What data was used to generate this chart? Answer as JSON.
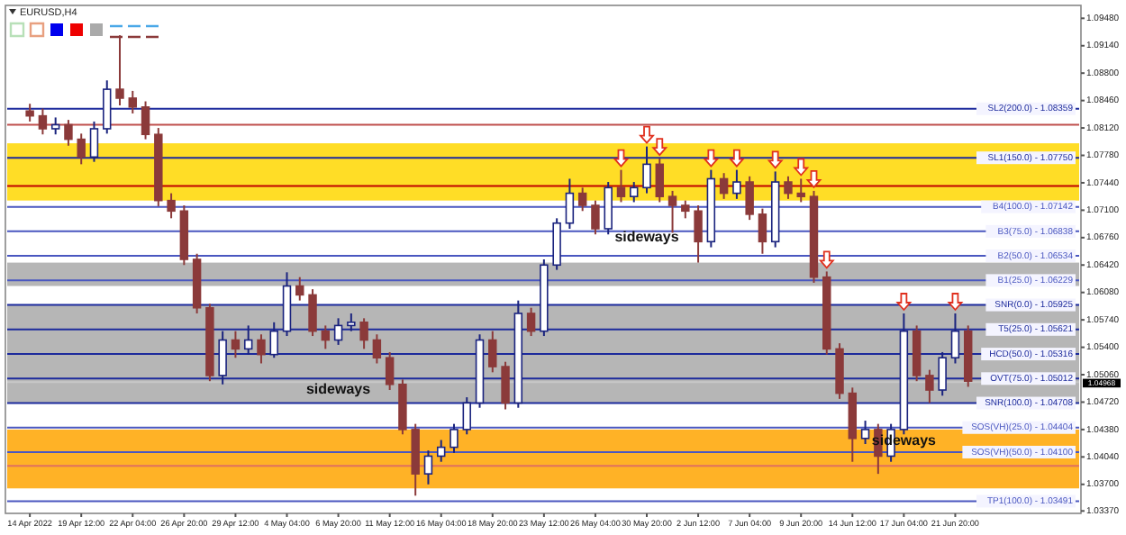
{
  "chart_data": {
    "type": "candlestick",
    "title": "EURUSD,H4",
    "categories": [
      "14 Apr 2022",
      null,
      null,
      null,
      "19 Apr 12:00",
      null,
      null,
      null,
      "22 Apr 04:00",
      null,
      null,
      null,
      "26 Apr 20:00",
      null,
      null,
      null,
      "29 Apr 12:00",
      null,
      null,
      null,
      "4 May 04:00",
      null,
      null,
      null,
      "6 May 20:00",
      null,
      null,
      null,
      "11 May 12:00",
      null,
      null,
      null,
      "16 May 04:00",
      null,
      null,
      null,
      "18 May 20:00",
      null,
      null,
      null,
      "23 May 12:00",
      null,
      null,
      null,
      "26 May 04:00",
      null,
      null,
      null,
      "30 May 20:00",
      null,
      null,
      null,
      "2 Jun 12:00",
      null,
      null,
      null,
      "7 Jun 04:00",
      null,
      null,
      null,
      "9 Jun 20:00",
      null,
      null,
      null,
      "14 Jun 12:00",
      null,
      null,
      null,
      "17 Jun 04:00",
      null,
      null,
      null,
      "21 Jun 20:00",
      null,
      null,
      null,
      null,
      null,
      null,
      null,
      null,
      null
    ],
    "ohlc": [
      [
        1.0833,
        1.0842,
        1.082,
        1.0827
      ],
      [
        1.0827,
        1.0836,
        1.0804,
        1.0811
      ],
      [
        1.0811,
        1.0825,
        1.0804,
        1.0816
      ],
      [
        1.0816,
        1.0822,
        1.079,
        1.0798
      ],
      [
        1.0798,
        1.0805,
        1.0767,
        1.0776
      ],
      [
        1.0776,
        1.082,
        1.077,
        1.0811
      ],
      [
        1.0811,
        1.0871,
        1.0805,
        1.086
      ],
      [
        1.086,
        1.0927,
        1.084,
        1.0849
      ],
      [
        1.0849,
        1.0858,
        1.083,
        1.0838
      ],
      [
        1.0838,
        1.0845,
        1.0798,
        1.0804
      ],
      [
        1.0804,
        1.0812,
        1.0715,
        1.0722
      ],
      [
        1.0722,
        1.0731,
        1.07,
        1.0709
      ],
      [
        1.0709,
        1.0716,
        1.0642,
        1.0649
      ],
      [
        1.0649,
        1.0656,
        1.0582,
        1.0589
      ],
      [
        1.0589,
        1.0594,
        1.0498,
        1.0505
      ],
      [
        1.0505,
        1.056,
        1.0494,
        1.0549
      ],
      [
        1.0549,
        1.056,
        1.0527,
        1.0538
      ],
      [
        1.0538,
        1.0567,
        1.0531,
        1.0549
      ],
      [
        1.0549,
        1.0556,
        1.052,
        1.0531
      ],
      [
        1.0531,
        1.0571,
        1.0527,
        1.056
      ],
      [
        1.056,
        1.0633,
        1.0554,
        1.0616
      ],
      [
        1.0616,
        1.0627,
        1.0598,
        1.0605
      ],
      [
        1.0605,
        1.0612,
        1.0554,
        1.056
      ],
      [
        1.056,
        1.0567,
        1.0538,
        1.0549
      ],
      [
        1.0549,
        1.0576,
        1.0543,
        1.0567
      ],
      [
        1.0567,
        1.0582,
        1.056,
        1.0571
      ],
      [
        1.0571,
        1.0576,
        1.0538,
        1.0549
      ],
      [
        1.0549,
        1.0556,
        1.052,
        1.0527
      ],
      [
        1.0527,
        1.0534,
        1.0487,
        1.0494
      ],
      [
        1.0494,
        1.05,
        1.0432,
        1.0438
      ],
      [
        1.0438,
        1.0445,
        1.0356,
        1.0383
      ],
      [
        1.0383,
        1.0412,
        1.037,
        1.0405
      ],
      [
        1.0405,
        1.0425,
        1.0398,
        1.0416
      ],
      [
        1.0416,
        1.0445,
        1.0409,
        1.0438
      ],
      [
        1.0438,
        1.0478,
        1.0432,
        1.0471
      ],
      [
        1.0471,
        1.0556,
        1.0465,
        1.0549
      ],
      [
        1.0549,
        1.056,
        1.0509,
        1.0516
      ],
      [
        1.0516,
        1.0522,
        1.0463,
        1.0471
      ],
      [
        1.0471,
        1.0598,
        1.0465,
        1.0582
      ],
      [
        1.0582,
        1.0589,
        1.0554,
        1.056
      ],
      [
        1.056,
        1.0649,
        1.0554,
        1.0642
      ],
      [
        1.0642,
        1.07,
        1.0636,
        1.0694
      ],
      [
        1.0694,
        1.0749,
        1.0687,
        1.0731
      ],
      [
        1.0731,
        1.0738,
        1.0709,
        1.0716
      ],
      [
        1.0716,
        1.0722,
        1.068,
        1.0687
      ],
      [
        1.0687,
        1.0745,
        1.068,
        1.0738
      ],
      [
        1.0738,
        1.076,
        1.072,
        1.0727
      ],
      [
        1.0727,
        1.0745,
        1.072,
        1.0738
      ],
      [
        1.0738,
        1.0789,
        1.0731,
        1.0767
      ],
      [
        1.0767,
        1.0774,
        1.072,
        1.0727
      ],
      [
        1.0727,
        1.0734,
        1.0682,
        1.0716
      ],
      [
        1.0716,
        1.0722,
        1.07,
        1.0709
      ],
      [
        1.0709,
        1.0716,
        1.0645,
        1.0671
      ],
      [
        1.0671,
        1.076,
        1.0664,
        1.0749
      ],
      [
        1.0749,
        1.0756,
        1.0724,
        1.0731
      ],
      [
        1.0731,
        1.076,
        1.0724,
        1.0745
      ],
      [
        1.0745,
        1.0752,
        1.0698,
        1.0705
      ],
      [
        1.0705,
        1.0712,
        1.0656,
        1.0671
      ],
      [
        1.0671,
        1.0758,
        1.0664,
        1.0745
      ],
      [
        1.0745,
        1.0752,
        1.0724,
        1.0731
      ],
      [
        1.0731,
        1.0749,
        1.072,
        1.0727
      ],
      [
        1.0727,
        1.0734,
        1.062,
        1.0627
      ],
      [
        1.0627,
        1.0634,
        1.0531,
        1.0538
      ],
      [
        1.0538,
        1.0545,
        1.0476,
        1.0483
      ],
      [
        1.0483,
        1.049,
        1.0398,
        1.0427
      ],
      [
        1.0427,
        1.0449,
        1.042,
        1.0438
      ],
      [
        1.0438,
        1.0445,
        1.0383,
        1.0405
      ],
      [
        1.0405,
        1.0445,
        1.0398,
        1.0438
      ],
      [
        1.0438,
        1.0582,
        1.0432,
        1.056
      ],
      [
        1.056,
        1.0567,
        1.0498,
        1.0505
      ],
      [
        1.0505,
        1.0512,
        1.0471,
        1.0487
      ],
      [
        1.0487,
        1.0534,
        1.048,
        1.0527
      ],
      [
        1.0527,
        1.0582,
        1.052,
        1.056
      ],
      [
        1.056,
        1.0567,
        1.0491,
        1.0498
      ],
      null,
      null,
      null,
      null,
      null,
      null,
      null,
      null
    ],
    "ylim": [
      1.0334,
      1.0964
    ],
    "yticks": [
      {
        "value": 1.0948,
        "label": "1.09480"
      },
      {
        "value": 1.0914,
        "label": "1.09140"
      },
      {
        "value": 1.088,
        "label": "1.08800"
      },
      {
        "value": 1.0846,
        "label": "1.08460"
      },
      {
        "value": 1.0812,
        "label": "1.08120"
      },
      {
        "value": 1.0778,
        "label": "1.07780"
      },
      {
        "value": 1.0744,
        "label": "1.07440"
      },
      {
        "value": 1.071,
        "label": "1.07100"
      },
      {
        "value": 1.0676,
        "label": "1.06760"
      },
      {
        "value": 1.0642,
        "label": "1.06420"
      },
      {
        "value": 1.0608,
        "label": "1.06080"
      },
      {
        "value": 1.0574,
        "label": "1.05740"
      },
      {
        "value": 1.054,
        "label": "1.05400"
      },
      {
        "value": 1.0506,
        "label": "1.05060"
      },
      {
        "value": 1.0472,
        "label": "1.04720"
      },
      {
        "value": 1.0438,
        "label": "1.04380"
      },
      {
        "value": 1.0404,
        "label": "1.04040"
      },
      {
        "value": 1.037,
        "label": "1.03700"
      },
      {
        "value": 1.0337,
        "label": "1.03370"
      }
    ],
    "bands": [
      {
        "axis": "y",
        "from": 1.0722,
        "to": 1.0793,
        "color": "#ffd700"
      },
      {
        "axis": "y",
        "from": 1.04708,
        "to": 1.05925,
        "color": "#a9a9a9"
      },
      {
        "axis": "y",
        "from": 1.0616,
        "to": 1.0645,
        "color": "#a9a9a9"
      },
      {
        "axis": "y",
        "from": 1.0365,
        "to": 1.0438,
        "color": "#ffa500"
      }
    ],
    "ref_lines": [
      {
        "axis": "y",
        "value": 1.08359,
        "label": "SL2(200.0) - 1.08359",
        "color": "#1c2a9c"
      },
      {
        "axis": "y",
        "value": 1.0775,
        "label": "SL1(150.0) - 1.07750",
        "color": "#1c2a9c"
      },
      {
        "axis": "y",
        "value": 1.07142,
        "label": "B4(100.0) - 1.07142",
        "color": "#4a57c0"
      },
      {
        "axis": "y",
        "value": 1.06838,
        "label": "B3(75.0) - 1.06838",
        "color": "#4a57c0"
      },
      {
        "axis": "y",
        "value": 1.06534,
        "label": "B2(50.0) - 1.06534",
        "color": "#4a57c0"
      },
      {
        "axis": "y",
        "value": 1.06229,
        "label": "B1(25.0) - 1.06229",
        "color": "#4a57c0"
      },
      {
        "axis": "y",
        "value": 1.05925,
        "label": "SNR(0.0) - 1.05925",
        "color": "#1c2a9c"
      },
      {
        "axis": "y",
        "value": 1.05621,
        "label": "T5(25.0) - 1.05621",
        "color": "#1c2a9c"
      },
      {
        "axis": "y",
        "value": 1.05316,
        "label": "HCD(50.0) - 1.05316",
        "color": "#1c2a9c"
      },
      {
        "axis": "y",
        "value": 1.05012,
        "label": "OVT(75.0) - 1.05012",
        "color": "#1c2a9c"
      },
      {
        "axis": "y",
        "value": 1.04708,
        "label": "SNR(100.0) - 1.04708",
        "color": "#1c2a9c"
      },
      {
        "axis": "y",
        "value": 1.04404,
        "label": "SOS(VH)(25.0) - 1.04404",
        "color": "#4a57c0"
      },
      {
        "axis": "y",
        "value": 1.041,
        "label": "SOS(VH)(50.0) - 1.04100",
        "color": "#4a57c0"
      },
      {
        "axis": "y",
        "value": 1.03491,
        "label": "TP1(100.0) - 1.03491",
        "color": "#4a57c0"
      },
      {
        "axis": "y",
        "value": 1.0816,
        "color": "#c0504d"
      },
      {
        "axis": "y",
        "value": 1.074,
        "color": "#c00000"
      },
      {
        "axis": "y",
        "value": 1.0393,
        "color": "#e07060"
      },
      {
        "axis": "y",
        "value": 1.04968,
        "color": "#c8c8c8"
      }
    ],
    "annotations": [
      {
        "text": "sideways",
        "x": "6 May 20:00",
        "y": 1.0487
      },
      {
        "text": "sideways",
        "x": "30 May 20:00",
        "y": 1.0676
      },
      {
        "text": "sideways",
        "x": "17 Jun 04:00",
        "y": 1.0424
      },
      "1.04968"
    ]
  }
}
